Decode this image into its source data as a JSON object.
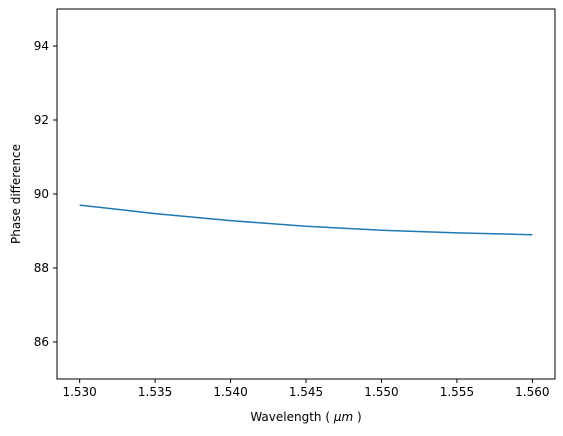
{
  "chart_data": {
    "type": "line",
    "title": "",
    "xlabel": "Wavelength",
    "xlabel_unit": "μm",
    "ylabel": "Phase difference",
    "xlim": [
      1.5285,
      1.5615
    ],
    "ylim": [
      85,
      95
    ],
    "xticks": [
      "1.530",
      "1.535",
      "1.540",
      "1.545",
      "1.550",
      "1.555",
      "1.560"
    ],
    "yticks": [
      "86",
      "88",
      "90",
      "92",
      "94"
    ],
    "grid": false,
    "legend": "none",
    "series": [
      {
        "color": "#1f77b4",
        "x": [
          1.53,
          1.535,
          1.54,
          1.545,
          1.55,
          1.555,
          1.56
        ],
        "y": [
          89.7,
          89.47,
          89.28,
          89.13,
          89.02,
          88.95,
          88.9
        ]
      }
    ]
  }
}
